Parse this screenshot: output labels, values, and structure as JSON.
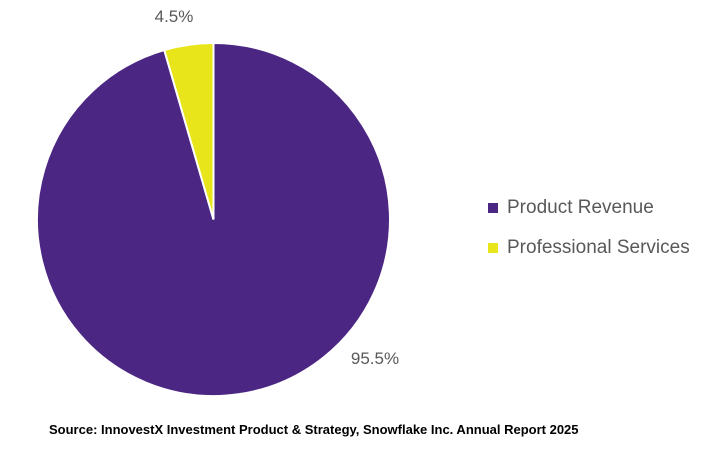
{
  "chart_data": {
    "type": "pie",
    "slices": [
      {
        "name": "Product Revenue",
        "value": 95.5,
        "label": "95.5%",
        "color": "#4b2683"
      },
      {
        "name": "Professional Services",
        "value": 4.5,
        "label": "4.5%",
        "color": "#e8e61a"
      }
    ],
    "start_angle": "12 o'clock",
    "direction": "clockwise",
    "legend_placement": "right"
  },
  "source": "Source: InnovestX Investment Product & Strategy, Snowflake Inc. Annual Report 2025"
}
